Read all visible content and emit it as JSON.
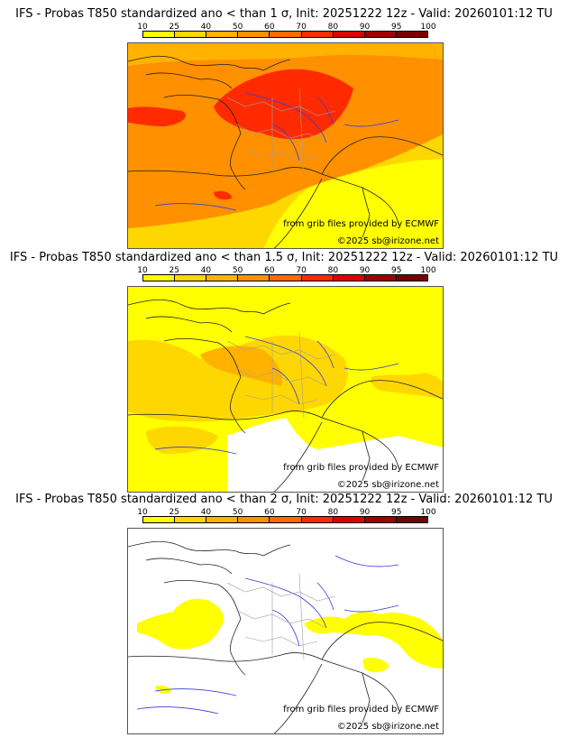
{
  "colorbar": {
    "ticks": [
      "10",
      "25",
      "40",
      "50",
      "60",
      "70",
      "80",
      "90",
      "95",
      "100"
    ],
    "colors": [
      "#ffff00",
      "#ffd700",
      "#ffb300",
      "#ff9000",
      "#ff6a00",
      "#ff2a00",
      "#dd0000",
      "#a00000",
      "#780000"
    ]
  },
  "panels": [
    {
      "title": "IFS - Probas T850  standardized ano < than 1 σ, Init: 20251222 12z - Valid: 20260101:12 TU",
      "credit_source": "from grib files provided by ECMWF",
      "credit_copyright": "©2025 sb@irizone.net",
      "base_color": "#ffb300"
    },
    {
      "title": "IFS - Probas T850  standardized ano < than 1.5 σ, Init: 20251222 12z - Valid: 20260101:12 TU",
      "credit_source": "from grib files provided by ECMWF",
      "credit_copyright": "©2025 sb@irizone.net",
      "base_color": "#ffff00"
    },
    {
      "title": "IFS - Probas T850  standardized ano < than 2 σ, Init: 20251222 12z - Valid: 20260101:12 TU",
      "credit_source": "from grib files provided by ECMWF",
      "credit_copyright": "©2025 sb@irizone.net",
      "base_color": "#ffffff"
    }
  ]
}
